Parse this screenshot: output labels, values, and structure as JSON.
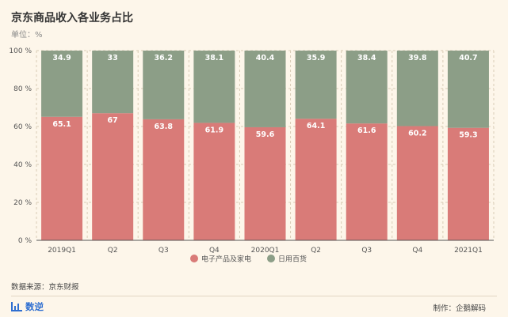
{
  "title": "京东商品收入各业务占比",
  "unit": "单位：%",
  "source": "数据来源：京东财报",
  "brand": "数逆",
  "maker": "制作：企鹅解码",
  "colors": {
    "bottom": "#d97b78",
    "top": "#8c9e87",
    "grid": "#d9ccb5",
    "background": "#fdf6ea"
  },
  "chart_data": {
    "type": "bar",
    "stacked": true,
    "categories": [
      "2019Q1",
      "Q2",
      "Q3",
      "Q4",
      "2020Q1",
      "Q2",
      "Q3",
      "Q4",
      "2021Q1"
    ],
    "series": [
      {
        "name": "电子产品及家电",
        "values": [
          65.1,
          67,
          63.8,
          61.9,
          59.6,
          64.1,
          61.6,
          60.2,
          59.3
        ]
      },
      {
        "name": "日用百货",
        "values": [
          34.9,
          33,
          36.2,
          38.1,
          40.4,
          35.9,
          38.4,
          39.8,
          40.7
        ]
      }
    ],
    "yticks": [
      "0 %",
      "20 %",
      "40 %",
      "60 %",
      "80 %",
      "100 %"
    ],
    "ylim": [
      0,
      100
    ],
    "grid": true,
    "legend": "bottom-center"
  }
}
